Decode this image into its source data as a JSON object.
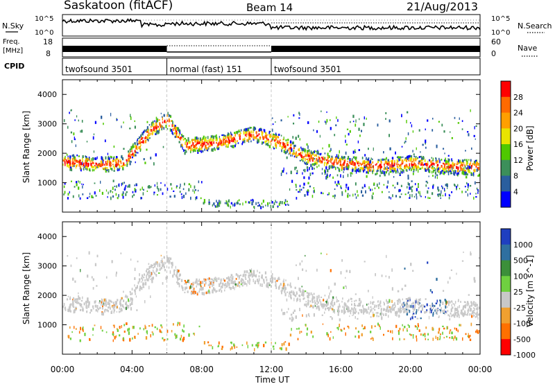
{
  "header": {
    "station": "Saskatoon (fitACF)",
    "beam": "Beam 14",
    "date": "21/Aug/2013"
  },
  "noise_panel": {
    "left_label": "N.Sky",
    "right_label": "N.Search",
    "ticks_left": [
      "10^5",
      "10^0"
    ],
    "ticks_right": [
      "10^5",
      "10^0"
    ]
  },
  "freq_panel": {
    "left_label_line1": "Freq.",
    "left_label_line2": "[MHz]",
    "right_label": "Nave",
    "ticks_left": [
      "18",
      "8"
    ],
    "ticks_right": [
      "60",
      "0"
    ]
  },
  "cpid_panel": {
    "label": "CPID",
    "segments": [
      {
        "name": "twofsound 3501",
        "start_hour": 0,
        "end_hour": 6
      },
      {
        "name": "normal (fast) 151",
        "start_hour": 6,
        "end_hour": 12
      },
      {
        "name": "twofsound 3501",
        "start_hour": 12,
        "end_hour": 24
      }
    ]
  },
  "chart_data": [
    {
      "type": "heatmap",
      "name": "power",
      "ylabel": "Slant Range [km]",
      "xlabel": "Time UT",
      "xlim": [
        0,
        24
      ],
      "ylim": [
        0,
        4500
      ],
      "yticks": [
        1000,
        2000,
        3000,
        4000
      ],
      "xticks": [
        "00:00",
        "04:00",
        "08:00",
        "12:00",
        "16:00",
        "20:00",
        "00:00"
      ],
      "colorbar": {
        "label": "Power [dB]",
        "ticks": [
          "28",
          "24",
          "20",
          "16",
          "12",
          "8",
          "4"
        ],
        "colors": [
          "#ff0000",
          "#ff6a00",
          "#ff9f00",
          "#e8e400",
          "#4fc800",
          "#3c8f5a",
          "#2a5e9e",
          "#0000ff"
        ]
      },
      "echo_band_range_km": [
        {
          "hour": 0,
          "range": 1750
        },
        {
          "hour": 2,
          "range": 1650
        },
        {
          "hour": 3.5,
          "range": 1700
        },
        {
          "hour": 5,
          "range": 2800
        },
        {
          "hour": 6,
          "range": 3200
        },
        {
          "hour": 7,
          "range": 2300
        },
        {
          "hour": 9,
          "range": 2400
        },
        {
          "hour": 11,
          "range": 2700
        },
        {
          "hour": 12.5,
          "range": 2400
        },
        {
          "hour": 14,
          "range": 1900
        },
        {
          "hour": 16,
          "range": 1700
        },
        {
          "hour": 18,
          "range": 1600
        },
        {
          "hour": 20,
          "range": 1700
        },
        {
          "hour": 22,
          "range": 1600
        },
        {
          "hour": 24,
          "range": 1550
        }
      ]
    },
    {
      "type": "heatmap",
      "name": "velocity",
      "ylabel": "Slant Range [km]",
      "xlabel": "Time UT",
      "xlim": [
        0,
        24
      ],
      "ylim": [
        0,
        4500
      ],
      "yticks": [
        1000,
        2000,
        3000,
        4000
      ],
      "xticks": [
        "00:00",
        "04:00",
        "08:00",
        "12:00",
        "16:00",
        "20:00",
        "00:00"
      ],
      "colorbar": {
        "label": "Velocity [m s^-1]",
        "ticks": [
          "1000",
          "500",
          "100",
          "25",
          "-25",
          "-100",
          "-500",
          "-1000"
        ],
        "colors": [
          "#1f3fc0",
          "#2f6fa0",
          "#3c8f3a",
          "#6fd040",
          "#c8c8c8",
          "#f0a030",
          "#ff7000",
          "#ff0000"
        ]
      }
    }
  ]
}
